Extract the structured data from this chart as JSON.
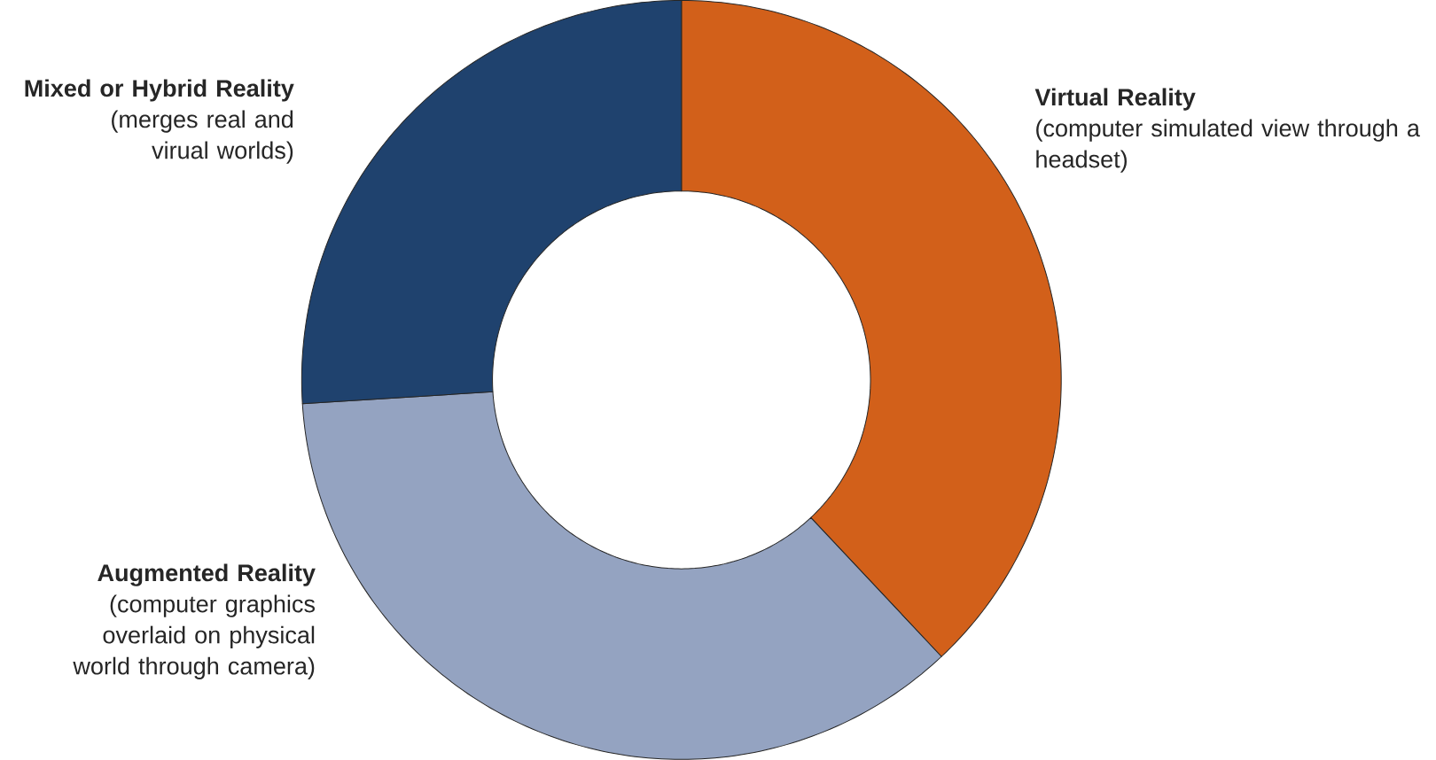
{
  "chart_data": {
    "type": "donut",
    "categories": [
      "Virtual Reality",
      "Augmented Reality",
      "Mixed or Hybrid Reality"
    ],
    "values": [
      38,
      36,
      26
    ],
    "colors": [
      "#d2601a",
      "#94a3c1",
      "#1f426e"
    ],
    "annotations": [
      "(computer simulated view through a headset)",
      "(computer graphics overlaid on physical world through camera)",
      "(merges real and virual worlds)"
    ]
  }
}
